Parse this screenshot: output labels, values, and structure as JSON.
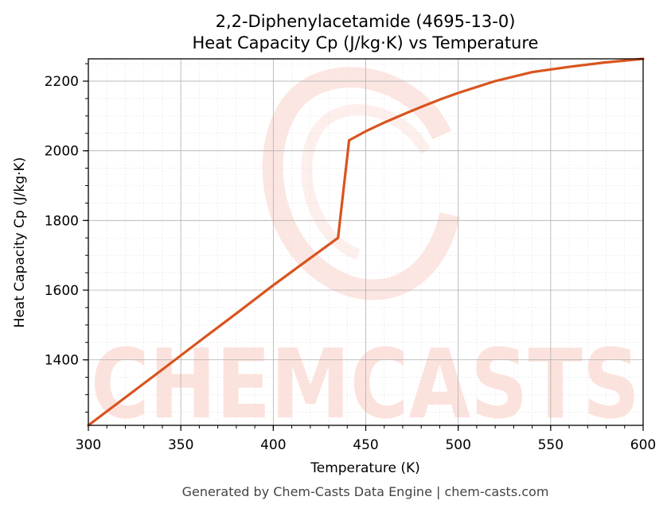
{
  "chart_data": {
    "type": "line",
    "title": "2,2-Diphenylacetamide (4695-13-0)",
    "subtitle": "Heat Capacity Cp (J/kg·K) vs Temperature",
    "xlabel": "Temperature (K)",
    "ylabel": "Heat Capacity Cp (J/kg·K)",
    "xlim": [
      300,
      600
    ],
    "ylim": [
      1212,
      2264
    ],
    "xticks": [
      300,
      350,
      400,
      450,
      500,
      550,
      600
    ],
    "yticks": [
      1400,
      1600,
      1800,
      2000,
      2200
    ],
    "grid": true,
    "series": [
      {
        "color": "#d9541e",
        "x": [
          300,
          320,
          340,
          360,
          380,
          400,
          420,
          435,
          441,
          450,
          460,
          470,
          480,
          490,
          500,
          520,
          540,
          560,
          580,
          600
        ],
        "y": [
          1212,
          1292,
          1372,
          1453,
          1533,
          1614,
          1692,
          1750,
          2030,
          2056,
          2081,
          2104,
          2126,
          2147,
          2166,
          2200,
          2226,
          2241,
          2254,
          2264
        ]
      }
    ]
  },
  "watermark": {
    "text": "CHEMCASTS"
  },
  "footer": {
    "text": "Generated by Chem-Casts Data Engine | chem-casts.com"
  }
}
